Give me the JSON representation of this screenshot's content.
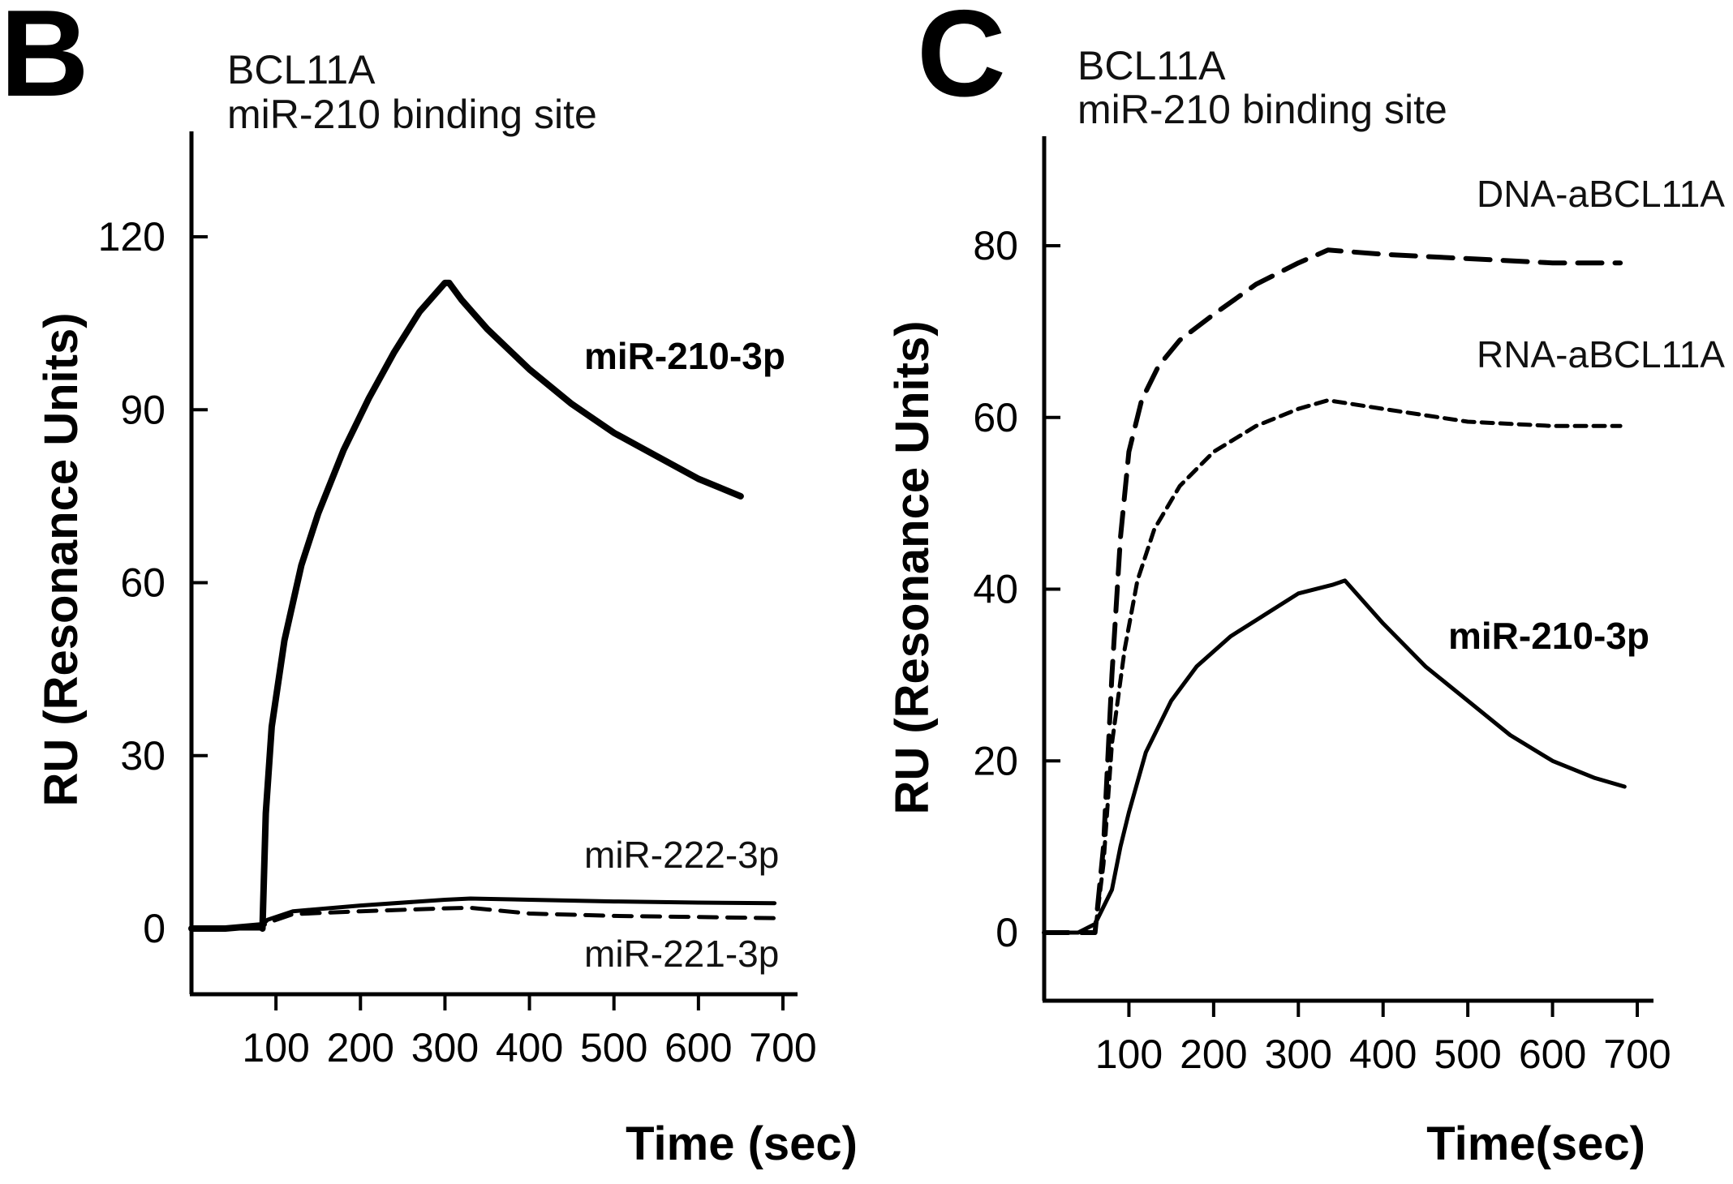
{
  "chart_data": [
    {
      "type": "line",
      "panel": "B",
      "title": "BCL11A",
      "subtitle": "miR-210 binding site",
      "xlabel": "Time (sec)",
      "ylabel": "RU (Resonance Units)",
      "xlim": [
        0,
        710
      ],
      "ylim": [
        -10,
        135
      ],
      "xticks": [
        100,
        200,
        300,
        400,
        500,
        600,
        700
      ],
      "yticks": [
        0,
        30,
        60,
        90,
        120
      ],
      "series": [
        {
          "name": "miR-210-3p",
          "style": "solid-bold",
          "x": [
            0,
            40,
            80,
            84,
            88,
            95,
            110,
            130,
            150,
            180,
            210,
            240,
            270,
            300,
            305,
            320,
            350,
            400,
            450,
            500,
            550,
            600,
            650
          ],
          "values": [
            0,
            0,
            0.5,
            0,
            20,
            35,
            50,
            63,
            72,
            83,
            92,
            100,
            107,
            112,
            112,
            109,
            104,
            97,
            91,
            86,
            82,
            78,
            75
          ]
        },
        {
          "name": "miR-222-3p",
          "style": "solid",
          "x": [
            0,
            80,
            90,
            120,
            200,
            300,
            330,
            400,
            500,
            600,
            690
          ],
          "values": [
            0,
            0,
            1.5,
            3,
            4,
            5,
            5.2,
            5,
            4.7,
            4.5,
            4.4
          ]
        },
        {
          "name": "miR-221-3p",
          "style": "dashed",
          "x": [
            0,
            80,
            90,
            120,
            200,
            300,
            330,
            400,
            500,
            600,
            690
          ],
          "values": [
            0,
            0,
            1,
            2.5,
            3,
            3.5,
            3.6,
            2.6,
            2.2,
            2,
            1.8
          ]
        }
      ]
    },
    {
      "type": "line",
      "panel": "C",
      "title": "BCL11A",
      "subtitle": "miR-210 binding site",
      "xlabel": "Time(sec)",
      "ylabel": "RU (Resonance Units)",
      "xlim": [
        0,
        710
      ],
      "ylim": [
        -7,
        92
      ],
      "xticks": [
        100,
        200,
        300,
        400,
        500,
        600,
        700
      ],
      "yticks": [
        0,
        20,
        40,
        60,
        80
      ],
      "series": [
        {
          "name": "DNA-aBCL11A",
          "style": "dashed-long",
          "x": [
            0,
            40,
            60,
            70,
            80,
            90,
            100,
            115,
            135,
            160,
            200,
            250,
            300,
            335,
            400,
            500,
            600,
            680
          ],
          "values": [
            0,
            0,
            0,
            10,
            30,
            46,
            56,
            62,
            66,
            69,
            72,
            75.5,
            78,
            79.5,
            79,
            78.5,
            78,
            78
          ]
        },
        {
          "name": "RNA-aBCL11A",
          "style": "dashed-short",
          "x": [
            0,
            40,
            60,
            70,
            80,
            95,
            110,
            130,
            160,
            200,
            250,
            300,
            335,
            400,
            500,
            600,
            680
          ],
          "values": [
            0,
            0,
            0,
            8,
            22,
            33,
            41,
            47,
            52,
            56,
            59,
            61,
            62,
            61,
            59.5,
            59,
            59
          ]
        },
        {
          "name": "miR-210-3p",
          "style": "solid",
          "x": [
            0,
            40,
            60,
            80,
            90,
            100,
            120,
            150,
            180,
            220,
            260,
            300,
            340,
            355,
            400,
            450,
            500,
            550,
            600,
            650,
            685
          ],
          "values": [
            0,
            0,
            1,
            5,
            10,
            14,
            21,
            27,
            31,
            34.5,
            37,
            39.5,
            40.5,
            41,
            36,
            31,
            27,
            23,
            20,
            18,
            17
          ]
        }
      ]
    }
  ]
}
